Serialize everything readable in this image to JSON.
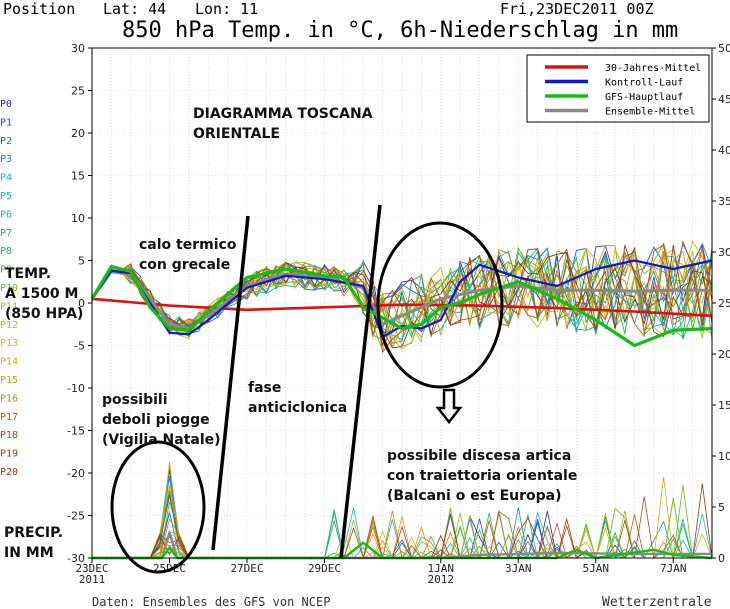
{
  "header": {
    "position_label": "Position",
    "lat_label": "Lat: 44",
    "lon_label": "Lon: 11",
    "run_label": "Fri,23DEC2011 00Z",
    "title": "850 hPa Temp. in °C, 6h-Niederschlag in mm"
  },
  "footer": {
    "source": "Daten: Ensembles des GFS von NCEP",
    "brand": "Wetterzentrale"
  },
  "legend": [
    {
      "name": "30-Jahres-Mittel",
      "color": "#e01010"
    },
    {
      "name": "Kontroll-Lauf",
      "color": "#1515d0"
    },
    {
      "name": "GFS-Hauptlauf",
      "color": "#10c010"
    },
    {
      "name": "Ensemble-Mittel",
      "color": "#888888"
    }
  ],
  "members": [
    {
      "name": "P0",
      "color": "#2222cc"
    },
    {
      "name": "P1",
      "color": "#2244dd"
    },
    {
      "name": "P2",
      "color": "#1166dd"
    },
    {
      "name": "P3",
      "color": "#1188dd"
    },
    {
      "name": "P4",
      "color": "#11aacc"
    },
    {
      "name": "P5",
      "color": "#11bbbb"
    },
    {
      "name": "P6",
      "color": "#11bb99"
    },
    {
      "name": "P7",
      "color": "#11bb77"
    },
    {
      "name": "P8",
      "color": "#22bb44"
    },
    {
      "name": "P9",
      "color": "#33bb22"
    },
    {
      "name": "P10",
      "color": "#66bb11"
    },
    {
      "name": "P11",
      "color": "#99bb11"
    },
    {
      "name": "P12",
      "color": "#bbbb11"
    },
    {
      "name": "P13",
      "color": "#ccbb11"
    },
    {
      "name": "P14",
      "color": "#ddaa11"
    },
    {
      "name": "P15",
      "color": "#dd9911"
    },
    {
      "name": "P16",
      "color": "#dd7711"
    },
    {
      "name": "P17",
      "color": "#cc5511"
    },
    {
      "name": "P18",
      "color": "#bb4411"
    },
    {
      "name": "P19",
      "color": "#aa3311"
    },
    {
      "name": "P20",
      "color": "#993311"
    }
  ],
  "annotations": {
    "diagram_title": [
      "DIAGRAMMA TOSCANA",
      "ORIENTALE"
    ],
    "temp_label": [
      "TEMP.",
      "A 1500 M",
      "(850 HPA)"
    ],
    "precip_label": [
      "PRECIP.",
      "IN MM"
    ],
    "cold": [
      "calo termico",
      "con grecale"
    ],
    "rain": [
      "possibili",
      "deboli piogge",
      "(Vigilia Natale)"
    ],
    "anticyclone": [
      "fase",
      "anticiclonica"
    ],
    "arctic": [
      "possibile discesa artica",
      "con traiettoria orientale",
      "(Balcani o est Europa)"
    ]
  },
  "chart_data": {
    "type": "line",
    "y_left": {
      "min": -30,
      "max": 30,
      "step": 5,
      "unit": "°C"
    },
    "y_right": {
      "min": 0,
      "max": 50,
      "step": 5,
      "unit": "mm"
    },
    "x_range_days": [
      0,
      16
    ],
    "x_ticks": [
      {
        "day": 0,
        "label": "23DEC",
        "sub": "2011"
      },
      {
        "day": 2,
        "label": "25DEC",
        "sub": ""
      },
      {
        "day": 4,
        "label": "27DEC",
        "sub": ""
      },
      {
        "day": 6,
        "label": "29DEC",
        "sub": ""
      },
      {
        "day": 9,
        "label": "1JAN",
        "sub": "2012"
      },
      {
        "day": 11,
        "label": "3JAN",
        "sub": ""
      },
      {
        "day": 13,
        "label": "5JAN",
        "sub": ""
      },
      {
        "day": 15,
        "label": "7JAN",
        "sub": ""
      }
    ],
    "climate_mean_t850": [
      [
        0,
        0.5
      ],
      [
        2,
        -0.3
      ],
      [
        4,
        -0.8
      ],
      [
        6,
        -0.5
      ],
      [
        8,
        -0.2
      ],
      [
        10,
        -0.3
      ],
      [
        12,
        -0.6
      ],
      [
        14,
        -1.0
      ],
      [
        16,
        -1.5
      ]
    ],
    "control_t850": [
      [
        0,
        0.5
      ],
      [
        0.5,
        3.8
      ],
      [
        1,
        3.5
      ],
      [
        1.5,
        0
      ],
      [
        2,
        -3.5
      ],
      [
        2.5,
        -3.7
      ],
      [
        3,
        -2
      ],
      [
        4,
        1.8
      ],
      [
        5,
        3.2
      ],
      [
        6,
        2.8
      ],
      [
        7,
        2
      ],
      [
        7.5,
        -4
      ],
      [
        8,
        -2.7
      ],
      [
        8.5,
        -3
      ],
      [
        9,
        -2
      ],
      [
        9.5,
        2.5
      ],
      [
        10,
        4.5
      ],
      [
        11,
        3
      ],
      [
        12,
        2
      ],
      [
        13,
        4
      ],
      [
        14,
        5
      ],
      [
        15,
        4
      ],
      [
        16,
        5
      ]
    ],
    "operational_t850": [
      [
        0,
        0.5
      ],
      [
        0.5,
        4.3
      ],
      [
        1,
        3.7
      ],
      [
        1.5,
        -0.5
      ],
      [
        2,
        -3
      ],
      [
        2.5,
        -3.2
      ],
      [
        3,
        -1
      ],
      [
        4,
        3
      ],
      [
        5,
        4
      ],
      [
        6,
        3.2
      ],
      [
        6.5,
        3
      ],
      [
        7,
        -0.5
      ],
      [
        8,
        -3
      ],
      [
        8.5,
        -2.5
      ],
      [
        9,
        -0.5
      ],
      [
        9.5,
        0
      ],
      [
        10,
        1
      ],
      [
        11,
        2.5
      ],
      [
        12,
        0.5
      ],
      [
        13,
        -2
      ],
      [
        14,
        -5
      ],
      [
        15,
        -3.2
      ],
      [
        16,
        -3
      ]
    ],
    "ensemble_mean_t850": [
      [
        0,
        0.5
      ],
      [
        0.5,
        3.8
      ],
      [
        1,
        3.5
      ],
      [
        1.5,
        0.5
      ],
      [
        2,
        -2.5
      ],
      [
        2.5,
        -3
      ],
      [
        3,
        -1.5
      ],
      [
        4,
        2
      ],
      [
        5,
        3.4
      ],
      [
        6,
        3
      ],
      [
        7,
        1.8
      ],
      [
        7.5,
        -2.5
      ],
      [
        8,
        -1.5
      ],
      [
        8.5,
        -0.5
      ],
      [
        9,
        0.5
      ],
      [
        10,
        1.5
      ],
      [
        11,
        2
      ],
      [
        12,
        1.5
      ],
      [
        13,
        1.5
      ],
      [
        14,
        1.4
      ],
      [
        15,
        1.5
      ],
      [
        16,
        1.5
      ]
    ],
    "operational_precip_mm": [
      [
        0,
        0
      ],
      [
        1.8,
        0
      ],
      [
        2,
        1
      ],
      [
        2.2,
        0
      ],
      [
        6.5,
        0
      ],
      [
        7,
        1.5
      ],
      [
        7.5,
        0
      ],
      [
        12,
        0
      ],
      [
        12.5,
        0.8
      ],
      [
        13,
        0
      ],
      [
        14.5,
        0.8
      ],
      [
        15,
        0.3
      ],
      [
        16,
        0
      ]
    ],
    "ensemble_mean_precip_mm": [
      [
        0,
        0
      ],
      [
        1.8,
        0
      ],
      [
        2,
        2.5
      ],
      [
        2.2,
        0
      ],
      [
        9,
        0
      ],
      [
        10,
        0.3
      ],
      [
        12,
        0.5
      ],
      [
        14,
        0.4
      ],
      [
        16,
        0.4
      ]
    ]
  }
}
